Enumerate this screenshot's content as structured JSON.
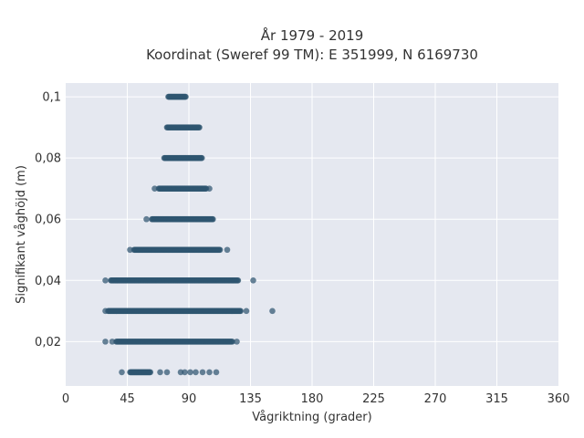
{
  "chart_data": {
    "type": "scatter",
    "title": "År 1979 - 2019",
    "subtitle": "Koordinat (Sweref 99 TM): E 351999, N 6169730",
    "xlabel": "Vågriktning (grader)",
    "ylabel": "Signifikant våghöjd (m)",
    "xlim": [
      0,
      360
    ],
    "ylim": [
      0.0055,
      0.1045
    ],
    "x_ticks": [
      0,
      45,
      90,
      135,
      180,
      225,
      270,
      315,
      360
    ],
    "x_tick_labels": [
      "0",
      "45",
      "90",
      "135",
      "180",
      "225",
      "270",
      "315",
      "360"
    ],
    "y_ticks": [
      0.02,
      0.04,
      0.06,
      0.08,
      0.1
    ],
    "y_tick_labels": [
      "0,02",
      "0,04",
      "0,06",
      "0,08",
      "0,1"
    ],
    "grid": true,
    "marker_color": "#2f5570",
    "background_color": "#e5e8f0",
    "bands": [
      {
        "y": 0.1,
        "x_min": 75,
        "x_max": 88,
        "outliers": []
      },
      {
        "y": 0.09,
        "x_min": 74,
        "x_max": 98,
        "outliers": []
      },
      {
        "y": 0.08,
        "x_min": 72,
        "x_max": 100,
        "outliers": []
      },
      {
        "y": 0.07,
        "x_min": 68,
        "x_max": 103,
        "outliers": [
          65,
          105
        ]
      },
      {
        "y": 0.06,
        "x_min": 63,
        "x_max": 108,
        "outliers": [
          59
        ]
      },
      {
        "y": 0.05,
        "x_min": 50,
        "x_max": 113,
        "outliers": [
          47,
          118
        ]
      },
      {
        "y": 0.04,
        "x_min": 33,
        "x_max": 126,
        "outliers": [
          29,
          137
        ]
      },
      {
        "y": 0.03,
        "x_min": 31,
        "x_max": 128,
        "outliers": [
          29,
          132,
          151
        ]
      },
      {
        "y": 0.02,
        "x_min": 37,
        "x_max": 122,
        "outliers": [
          29,
          34,
          125
        ]
      },
      {
        "y": 0.01,
        "x_min": 47,
        "x_max": 62,
        "outliers": [
          41,
          69,
          74,
          84,
          87,
          91,
          95,
          100,
          105,
          110
        ]
      }
    ]
  }
}
